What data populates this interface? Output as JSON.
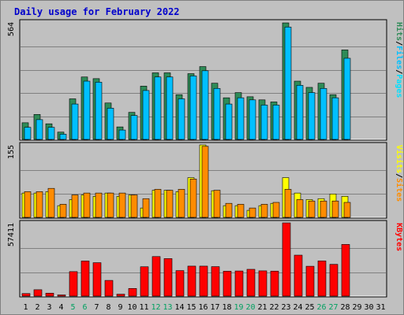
{
  "title": "Daily usage for February 2022",
  "colors": {
    "background": "#c0c0c0",
    "title": "#0000cc",
    "hits": "#2e8b57",
    "files": "#00c0ff",
    "pages": "#00e0ff",
    "visits": "#ffff00",
    "sites": "#ff8c00",
    "kbytes": "#ff0000",
    "weekend_label": "#00a060",
    "weekday_label": "#000000"
  },
  "chart_data": [
    {
      "type": "bar",
      "title": "Daily usage for February 2022",
      "panel": "requests",
      "scale_label": "564",
      "ylim": [
        0,
        564
      ],
      "categories": [
        "1",
        "2",
        "3",
        "4",
        "5",
        "6",
        "7",
        "8",
        "9",
        "10",
        "11",
        "12",
        "13",
        "14",
        "15",
        "16",
        "17",
        "18",
        "19",
        "20",
        "21",
        "22",
        "23",
        "24",
        "25",
        "26",
        "27",
        "28",
        "29",
        "30",
        "31"
      ],
      "weekend_days": [
        5,
        6,
        12,
        13,
        19,
        20,
        26,
        27
      ],
      "legend": [
        {
          "key": "hits",
          "label": "Hits"
        },
        {
          "key": "sep1",
          "label": "/"
        },
        {
          "key": "files",
          "label": "Files"
        },
        {
          "key": "sep2",
          "label": "/"
        },
        {
          "key": "pages",
          "label": "Pages"
        }
      ],
      "series": [
        {
          "name": "Hits",
          "color": "#2e8b57",
          "values": [
            80,
            120,
            75,
            35,
            195,
            300,
            292,
            175,
            60,
            130,
            256,
            320,
            320,
            215,
            316,
            350,
            270,
            200,
            225,
            205,
            190,
            180,
            560,
            280,
            250,
            270,
            215,
            430,
            0,
            0,
            0
          ]
        },
        {
          "name": "Files",
          "color": "#00c0ff",
          "values": [
            58,
            95,
            58,
            25,
            170,
            280,
            275,
            150,
            45,
            115,
            235,
            300,
            300,
            195,
            305,
            330,
            245,
            170,
            200,
            190,
            165,
            165,
            540,
            260,
            225,
            245,
            200,
            390,
            0,
            0,
            0
          ]
        }
      ]
    },
    {
      "type": "bar",
      "panel": "visits",
      "scale_label": "155",
      "ylim": [
        0,
        155
      ],
      "categories": [
        "1",
        "2",
        "3",
        "4",
        "5",
        "6",
        "7",
        "8",
        "9",
        "10",
        "11",
        "12",
        "13",
        "14",
        "15",
        "16",
        "17",
        "18",
        "19",
        "20",
        "21",
        "22",
        "23",
        "24",
        "25",
        "26",
        "27",
        "28",
        "29",
        "30",
        "31"
      ],
      "legend": [
        {
          "key": "visits",
          "label": "Visits"
        },
        {
          "key": "sep",
          "label": "/"
        },
        {
          "key": "sites",
          "label": "Sites"
        }
      ],
      "series": [
        {
          "name": "Visits",
          "color": "#ffff00",
          "values": [
            52,
            52,
            55,
            25,
            38,
            48,
            45,
            52,
            45,
            48,
            20,
            58,
            58,
            55,
            85,
            155,
            57,
            25,
            25,
            15,
            25,
            30,
            85,
            52,
            38,
            40,
            50,
            45,
            0,
            0,
            0
          ]
        },
        {
          "name": "Sites",
          "color": "#ff8c00",
          "values": [
            55,
            55,
            62,
            28,
            48,
            52,
            52,
            52,
            52,
            48,
            40,
            60,
            58,
            60,
            82,
            152,
            58,
            30,
            28,
            20,
            28,
            32,
            60,
            38,
            35,
            35,
            35,
            32,
            0,
            0,
            0
          ]
        }
      ]
    },
    {
      "type": "bar",
      "panel": "kbytes",
      "scale_label": "57411",
      "ylim": [
        0,
        57411
      ],
      "categories": [
        "1",
        "2",
        "3",
        "4",
        "5",
        "6",
        "7",
        "8",
        "9",
        "10",
        "11",
        "12",
        "13",
        "14",
        "15",
        "16",
        "17",
        "18",
        "19",
        "20",
        "21",
        "22",
        "23",
        "24",
        "25",
        "26",
        "27",
        "28",
        "29",
        "30",
        "31"
      ],
      "legend": [
        {
          "key": "kbytes",
          "label": "KBytes"
        }
      ],
      "series": [
        {
          "name": "KBytes",
          "color": "#ff0000",
          "values": [
            2000,
            5000,
            2300,
            600,
            19200,
            27500,
            26200,
            12300,
            1500,
            6000,
            23000,
            31000,
            29400,
            20000,
            23500,
            23500,
            23100,
            19500,
            19700,
            21000,
            19800,
            19600,
            57400,
            32100,
            23400,
            27600,
            24900,
            40500,
            0,
            0,
            0
          ]
        }
      ]
    }
  ]
}
